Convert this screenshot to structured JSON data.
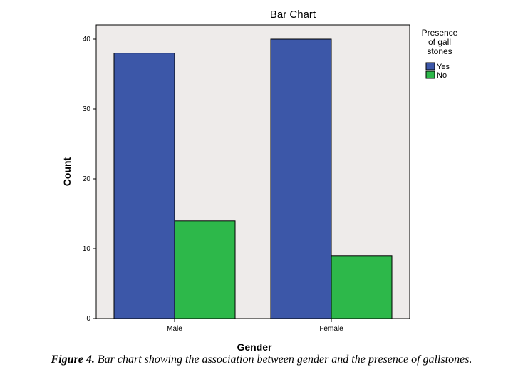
{
  "chart_data": {
    "type": "bar",
    "title": "Bar Chart",
    "xlabel": "Gender",
    "ylabel": "Count",
    "categories": [
      "Male",
      "Female"
    ],
    "series": [
      {
        "name": "Yes",
        "values": [
          38,
          40
        ],
        "color": "#3c57a8"
      },
      {
        "name": "No",
        "values": [
          14,
          9
        ],
        "color": "#2db84a"
      }
    ],
    "ylim": [
      0,
      40
    ],
    "yticks": [
      0,
      10,
      20,
      30,
      40
    ],
    "legend": {
      "title_lines": [
        "Presence",
        "of gall",
        "stones"
      ],
      "placement": "right"
    },
    "plot_background": "#eeebea",
    "grid": false
  },
  "caption": {
    "label": "Figure 4.",
    "text": " Bar chart showing the association between gender and the presence of gallstones."
  }
}
